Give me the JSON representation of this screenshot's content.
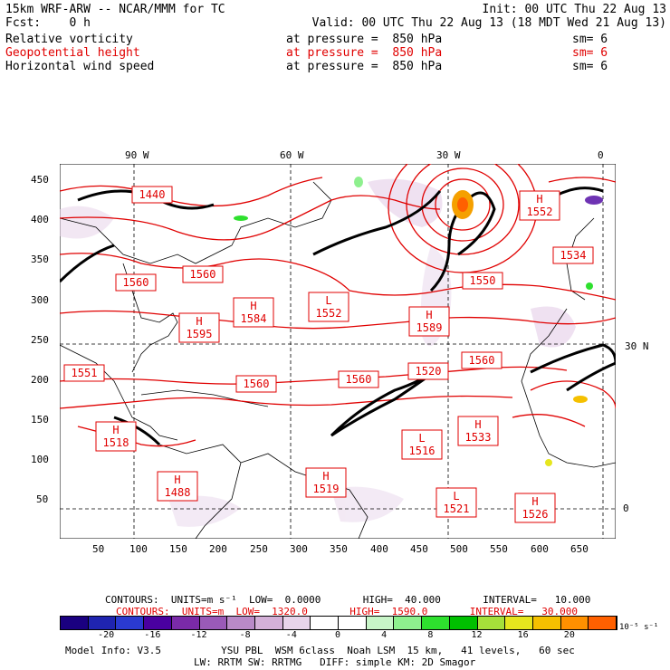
{
  "header": {
    "line1_left": "15km WRF-ARW -- NCAR/MMM for TC",
    "line1_right": "Init: 00 UTC Thu 22 Aug 13",
    "line2_left": "Fcst:    0 h",
    "line2_right": "Valid: 00 UTC Thu 22 Aug 13 (18 MDT Wed 21 Aug 13)",
    "fields": [
      {
        "name": "Relative vorticity",
        "level": "at pressure =  850 hPa",
        "sm": "sm= 6",
        "color": "#000000"
      },
      {
        "name": "Geopotential height",
        "level": "at pressure =  850 hPa",
        "sm": "sm= 6",
        "color": "#e00000"
      },
      {
        "name": "Horizontal wind speed",
        "level": "at pressure =  850 hPa",
        "sm": "sm= 6",
        "color": "#000000"
      }
    ]
  },
  "map": {
    "lon_labels": [
      "90 W",
      "60 W",
      "30 W",
      "0"
    ],
    "lat_labels": [
      "30 N",
      "0"
    ],
    "x_ticks": [
      "50",
      "100",
      "150",
      "200",
      "250",
      "300",
      "350",
      "400",
      "450",
      "500",
      "550",
      "600",
      "650"
    ],
    "y_ticks": [
      "50",
      "100",
      "150",
      "200",
      "250",
      "300",
      "350",
      "400",
      "450"
    ],
    "height_labels": [
      {
        "id": "h1440",
        "text": "1440"
      },
      {
        "id": "h1552a",
        "text": "H\n1552"
      },
      {
        "id": "h1560a",
        "text": "1560"
      },
      {
        "id": "h1560b",
        "text": "1560"
      },
      {
        "id": "h1584",
        "text": "H\n1584"
      },
      {
        "id": "l1552",
        "text": "L\n1552"
      },
      {
        "id": "h1589",
        "text": "H\n1589"
      },
      {
        "id": "h1595",
        "text": "H\n1595"
      },
      {
        "id": "h1550",
        "text": "1550"
      },
      {
        "id": "h1560c",
        "text": "1560"
      },
      {
        "id": "h1560d",
        "text": "1560"
      },
      {
        "id": "h1520",
        "text": "1520"
      },
      {
        "id": "h1560e",
        "text": "1560"
      },
      {
        "id": "h1551",
        "text": "1551"
      },
      {
        "id": "h1533",
        "text": "H\n1533"
      },
      {
        "id": "l1516",
        "text": "L\n1516"
      },
      {
        "id": "h1518",
        "text": "H\n1518"
      },
      {
        "id": "h1488",
        "text": "H\n1488"
      },
      {
        "id": "h1519",
        "text": "H\n1519"
      },
      {
        "id": "l1521",
        "text": "L\n1521"
      },
      {
        "id": "h1526",
        "text": "H\n1526"
      },
      {
        "id": "h1534",
        "text": "1534"
      }
    ]
  },
  "footer": {
    "contours_black": "CONTOURS:  UNITS=m s⁻¹  LOW=  0.0000       HIGH=  40.000       INTERVAL=   10.000",
    "contours_red": "CONTOURS:  UNITS=m  LOW=  1320.0       HIGH=  1590.0       INTERVAL=   30.000",
    "colorbar_labels": [
      "-20",
      "-16",
      "-12",
      "-8",
      "-4",
      "0",
      "4",
      "8",
      "12",
      "16",
      "20"
    ],
    "colorbar_units": "10⁻⁵ s⁻¹",
    "colorbar_colors": [
      "#1a0080",
      "#1f24b0",
      "#2a3ad0",
      "#4a00a0",
      "#7a2aa8",
      "#9a5ab8",
      "#b98ac8",
      "#d4b0d8",
      "#e8d4ea",
      "#ffffff",
      "#ffffff",
      "#c8f5c8",
      "#8ef08e",
      "#2ee02e",
      "#00c000",
      "#a6e03a",
      "#e6e61e",
      "#f5c000",
      "#ff9000",
      "#ff6000"
    ],
    "model_info": "Model Info: V3.5          YSU PBL  WSM 6class  Noah LSM  15 km,   41 levels,   60 sec",
    "model_info2": "LW: RRTM SW: RRTMG   DIFF: simple KM: 2D Smagor"
  }
}
